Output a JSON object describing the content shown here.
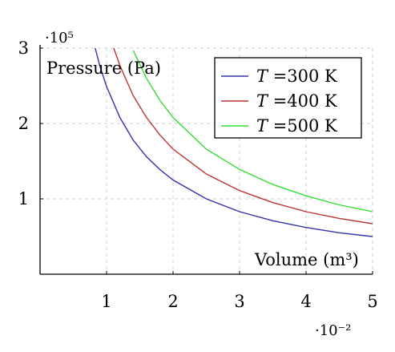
{
  "chart_data": {
    "type": "line",
    "title": "",
    "xlabel": "Volume (m³)",
    "ylabel": "Pressure (Pa)",
    "x_scale_label": "·10⁻²",
    "y_scale_label": "·10⁵",
    "x_range": [
      0,
      5
    ],
    "y_range": [
      0,
      3
    ],
    "x_ticks": [
      "1",
      "2",
      "3",
      "4",
      "5"
    ],
    "y_ticks": [
      "1",
      "2",
      "3"
    ],
    "grid": true,
    "legend_position": "top-right",
    "colors": {
      "axes": "#000000",
      "grid": "#cfcfcf"
    },
    "series": [
      {
        "name": "T =300 K",
        "legend_var": "T",
        "legend_rest": " =300  K",
        "color": "#3333aa",
        "x": [
          0.8,
          0.9,
          1.0,
          1.2,
          1.4,
          1.6,
          1.8,
          2.0,
          2.5,
          3.0,
          3.5,
          4.0,
          4.5,
          5.0
        ],
        "y": [
          3.1,
          2.76,
          2.49,
          2.08,
          1.78,
          1.56,
          1.39,
          1.25,
          1.0,
          0.83,
          0.71,
          0.62,
          0.55,
          0.5
        ]
      },
      {
        "name": "T =400 K",
        "legend_var": "T",
        "legend_rest": " =400  K",
        "color": "#bb3333",
        "x": [
          1.1,
          1.2,
          1.4,
          1.6,
          1.8,
          2.0,
          2.5,
          3.0,
          3.5,
          4.0,
          4.5,
          5.0
        ],
        "y": [
          3.02,
          2.77,
          2.37,
          2.08,
          1.85,
          1.66,
          1.33,
          1.11,
          0.95,
          0.83,
          0.74,
          0.67
        ]
      },
      {
        "name": "T =500 K",
        "legend_var": "T",
        "legend_rest": " =500  K",
        "color": "#33dd33",
        "x": [
          1.4,
          1.6,
          1.8,
          2.0,
          2.5,
          3.0,
          3.5,
          4.0,
          4.5,
          5.0
        ],
        "y": [
          2.97,
          2.6,
          2.31,
          2.08,
          1.66,
          1.39,
          1.19,
          1.04,
          0.92,
          0.83
        ]
      }
    ]
  }
}
